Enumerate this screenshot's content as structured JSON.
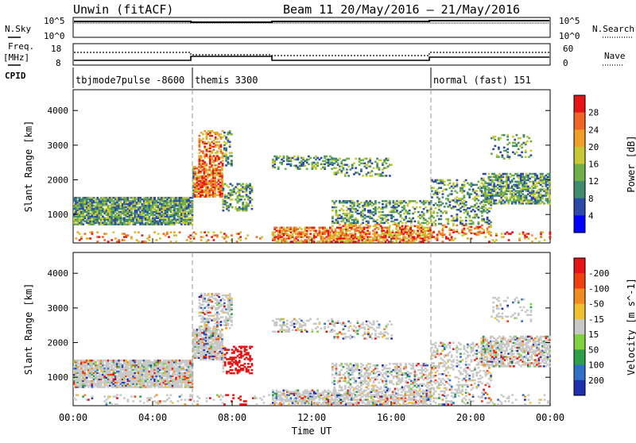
{
  "header": {
    "radar": "Unwin (fitACF)",
    "beam": "Beam 11 20/May/2016 – 21/May/2016"
  },
  "labels": {
    "nsky": "N.Sky",
    "freq": "Freq.",
    "freq_unit": "[MHz]",
    "cpid": "CPID",
    "nsearch": "N.Search",
    "nave": "Nave"
  },
  "ticks": {
    "nsky_left": [
      "10^5",
      "10^0"
    ],
    "nsky_right": [
      "10^5",
      "10^0"
    ],
    "freq_left": [
      "18",
      "8"
    ],
    "nave_right": [
      "60",
      "0"
    ]
  },
  "cpid_segments": [
    {
      "label": "tbjmode7pulse -8600",
      "start": 0,
      "end": 6
    },
    {
      "label": "themis 3300",
      "start": 6,
      "end": 18
    },
    {
      "label": "normal (fast) 151",
      "start": 18,
      "end": 24
    }
  ],
  "chart_data": [
    {
      "type": "heatmap",
      "name": "power",
      "ylabel": "Slant Range [km]",
      "xlim": [
        0,
        24
      ],
      "ylim": [
        180,
        4600
      ],
      "yticks": [
        1000,
        2000,
        3000,
        4000
      ],
      "colorbar_label": "Power [dB]",
      "colorbar_ticks": [
        "4",
        "8",
        "12",
        "16",
        "20",
        "24",
        "28"
      ],
      "colorbar_colors": [
        "#0000ff",
        "#2e4aa8",
        "#3f8c6f",
        "#6fb04a",
        "#c8c832",
        "#f0a028",
        "#f06428",
        "#e61414"
      ]
    },
    {
      "type": "heatmap",
      "name": "velocity",
      "ylabel": "Slant Range [km]",
      "xlabel": "Time UT",
      "xlim": [
        0,
        24
      ],
      "ylim": [
        180,
        4600
      ],
      "yticks": [
        1000,
        2000,
        3000,
        4000
      ],
      "xticks": [
        "00:00",
        "04:00",
        "08:00",
        "12:00",
        "16:00",
        "20:00",
        "00:00"
      ],
      "colorbar_label": "Velocity [m s^-1]",
      "colorbar_ticks": [
        "200",
        "100",
        "50",
        "15",
        "-15",
        "-50",
        "-100",
        "-200"
      ],
      "colorbar_colors": [
        "#1f2fb0",
        "#3070c8",
        "#2ea04a",
        "#80d040",
        "#c8c8c8",
        "#f0c030",
        "#f08c20",
        "#f04010",
        "#e61414"
      ]
    }
  ]
}
